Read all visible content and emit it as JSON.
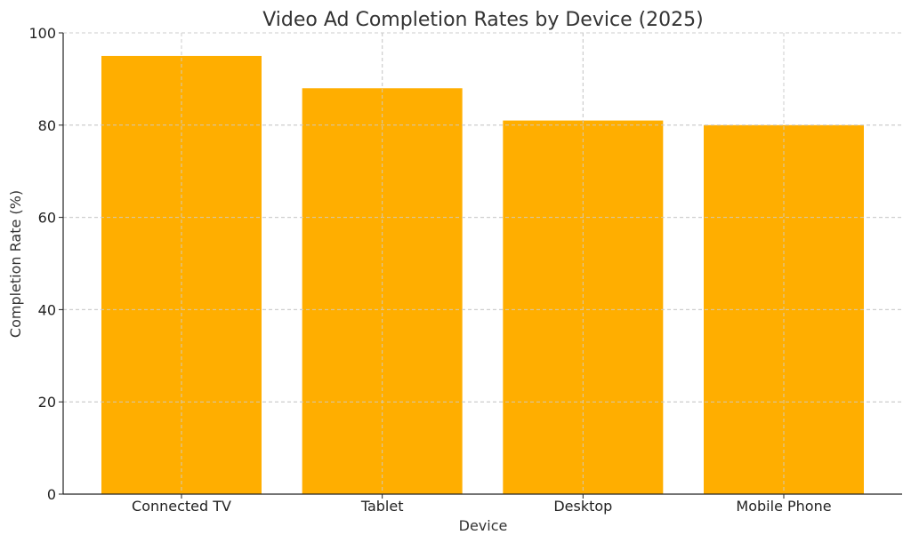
{
  "chart_data": {
    "type": "bar",
    "title": "Video Ad Completion Rates by Device (2025)",
    "xlabel": "Device",
    "ylabel": "Completion Rate (%)",
    "categories": [
      "Connected TV",
      "Tablet",
      "Desktop",
      "Mobile Phone"
    ],
    "values": [
      95,
      88,
      81,
      80
    ],
    "ylim": [
      0,
      100
    ],
    "yticks": [
      "0",
      "20",
      "40",
      "60",
      "80",
      "100"
    ],
    "grid": true,
    "bar_color": "#FFAE00"
  }
}
